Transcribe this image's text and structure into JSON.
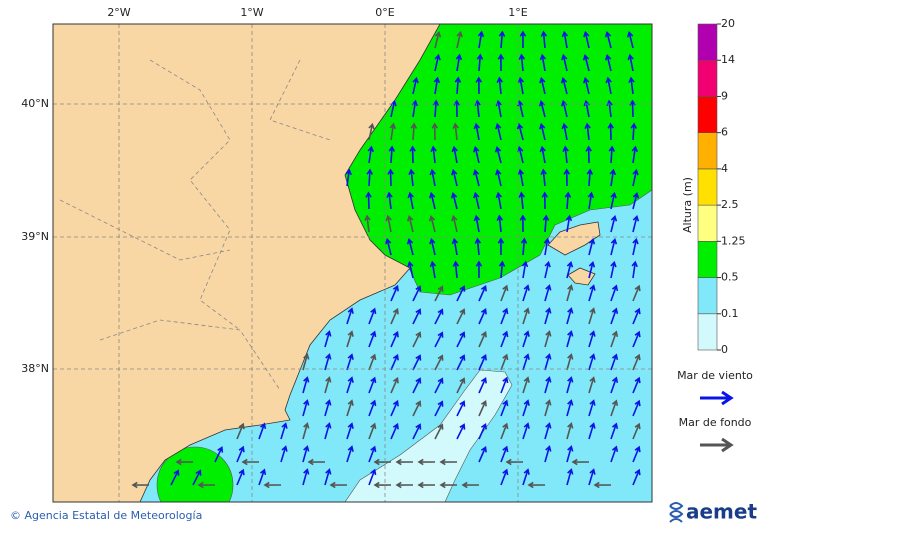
{
  "map": {
    "lon_labels": [
      "2°W",
      "1°W",
      "0°E",
      "1°E"
    ],
    "lat_labels": [
      "40°N",
      "39°N",
      "38°N"
    ]
  },
  "colorbar": {
    "title": "Altura (m)",
    "ticks": [
      0,
      0.1,
      0.5,
      1.25,
      2.5,
      4,
      6,
      9,
      14,
      20
    ],
    "colors": [
      "#d2fafc",
      "#80e8f8",
      "#00ee00",
      "#ffff80",
      "#ffe000",
      "#ffb000",
      "#ff0000",
      "#f00070",
      "#b000b0"
    ]
  },
  "legend": [
    {
      "label": "Mar de viento",
      "color": "#0a14e6"
    },
    {
      "label": "Mar de fondo",
      "color": "#555555"
    }
  ],
  "footer": {
    "credit": "© Agencia Estatal de Meteorología",
    "logo": "aemet"
  }
}
